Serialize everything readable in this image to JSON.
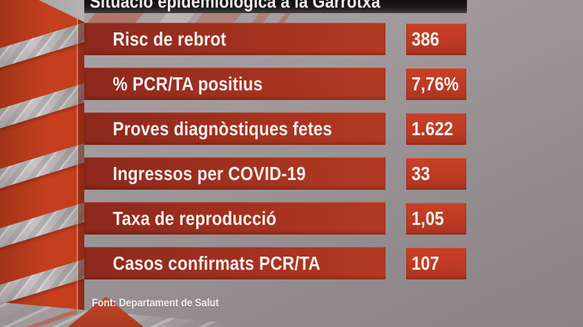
{
  "chart_data": {
    "type": "table",
    "title": "Situació epidemiològica a la Garrotxa",
    "rows": [
      {
        "label": "Risc de rebrot",
        "value": "386"
      },
      {
        "label": "% PCR/TA positius",
        "value": "7,76%"
      },
      {
        "label": "Proves diagnòstiques fetes",
        "value": "1.622"
      },
      {
        "label": "Ingressos per COVID-19",
        "value": "33"
      },
      {
        "label": "Taxa de reproducció",
        "value": "1,05"
      },
      {
        "label": "Casos confirmats PCR/TA",
        "value": "107"
      }
    ],
    "source": "Font: Departament de Salut",
    "layout_hints": "horizontal label bars with value boxes at right, title bar on top clipped by frame edge"
  },
  "colors": {
    "label_bar_red": "#a3321f",
    "value_box_red": "#bc3a23",
    "ribbon_red": "#c6401f",
    "title_bar_black": "#1d191a",
    "background_gray": "#9d9798",
    "text_white": "#f3efee"
  }
}
